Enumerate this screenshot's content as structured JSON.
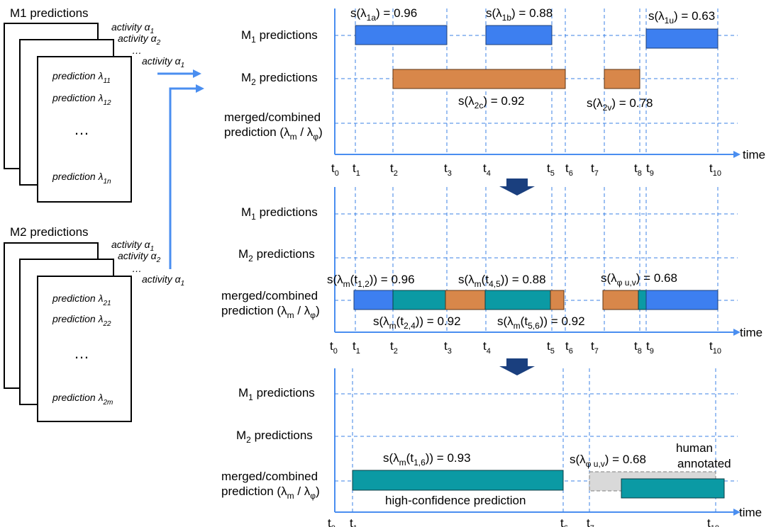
{
  "m1_stack": {
    "title": "M1 predictions",
    "activities": [
      "activity α",
      "activity α",
      "…",
      "activity α"
    ],
    "act_subs": [
      "1",
      "2",
      "",
      "1"
    ],
    "items": [
      {
        "text": "prediction λ",
        "sub": "11"
      },
      {
        "text": "prediction λ",
        "sub": "12"
      },
      {
        "text": "…",
        "sub": ""
      },
      {
        "text": "prediction λ",
        "sub": "1n"
      }
    ]
  },
  "m2_stack": {
    "title": "M2 predictions",
    "activities": [
      "activity α",
      "activity α",
      "…",
      "activity α"
    ],
    "act_subs": [
      "1",
      "2",
      "",
      "1"
    ],
    "items": [
      {
        "text": "prediction λ",
        "sub": "21"
      },
      {
        "text": "prediction λ",
        "sub": "22"
      },
      {
        "text": "…",
        "sub": ""
      },
      {
        "text": "prediction λ",
        "sub": "2m"
      }
    ]
  },
  "rows": {
    "m1": {
      "pre": "M",
      "sub": "1",
      "post": " predictions"
    },
    "m2": {
      "pre": "M",
      "sub": "2",
      "post": " predictions"
    },
    "merged_line1": "merged/combined",
    "merged_pre": "prediction (λ",
    "merged_sub1": "m",
    "merged_mid": " / λ",
    "merged_sub2": "φ",
    "merged_post": ")"
  },
  "axis_label": "time",
  "ticks": [
    {
      "t": "t",
      "sub": "0"
    },
    {
      "t": "t",
      "sub": "1"
    },
    {
      "t": "t",
      "sub": "2"
    },
    {
      "t": "t",
      "sub": "3"
    },
    {
      "t": "t",
      "sub": "4"
    },
    {
      "t": "t",
      "sub": "5"
    },
    {
      "t": "t",
      "sub": "6"
    },
    {
      "t": "t",
      "sub": "7"
    },
    {
      "t": "t",
      "sub": "8"
    },
    {
      "t": "t",
      "sub": "9"
    },
    {
      "t": "t",
      "sub": "10"
    }
  ],
  "panel1": {
    "s1a": {
      "pre": "s(λ",
      "sub": "1a",
      "post": ") = 0.96"
    },
    "s1b": {
      "pre": "s(λ",
      "sub": "1b",
      "post": ") = 0.88"
    },
    "s1u": {
      "pre": "s(λ",
      "sub": "1u",
      "post": ") = 0.63"
    },
    "s2c": {
      "pre": "s(λ",
      "sub": "2c",
      "post": ") = 0.92"
    },
    "s2v": {
      "pre": "s(λ",
      "sub": "2v",
      "post": ") = 0.78"
    }
  },
  "panel2": {
    "sm12": {
      "pre": "s(λ",
      "sub": "m",
      "mid": "(t",
      "sub2": "1,2",
      "post": ")) = 0.96"
    },
    "sm45": {
      "pre": "s(λ",
      "sub": "m",
      "mid": "(t",
      "sub2": "4,5",
      "post": ")) = 0.88"
    },
    "sphi": {
      "pre": "s(λ",
      "sub": "φ u,v",
      "post": ") = 0.68"
    },
    "sm24": {
      "pre": "s(λ",
      "sub": "m",
      "mid": "(t",
      "sub2": "2,4",
      "post": ")) = 0.92"
    },
    "sm56": {
      "pre": "s(λ",
      "sub": "m",
      "mid": "(t",
      "sub2": "5,6",
      "post": ")) = 0.92"
    }
  },
  "panel3": {
    "sm16": {
      "pre": "s(λ",
      "sub": "m",
      "mid": "(t",
      "sub2": "1,6",
      "post": ")) = 0.93"
    },
    "sphi": {
      "pre": "s(λ",
      "sub": "φ u,v",
      "post": ") = 0.68"
    },
    "human1": "human",
    "human2": "annotated",
    "highconf": "high-confidence prediction"
  },
  "colors": {
    "m1_bar": "#3d7ff0",
    "m2_bar": "#d8874a",
    "merged_bar": "#0b9aa4",
    "human_bar": "#d9d9d9",
    "grid": "#3b82e6",
    "arrow": "#1a3f7e"
  }
}
